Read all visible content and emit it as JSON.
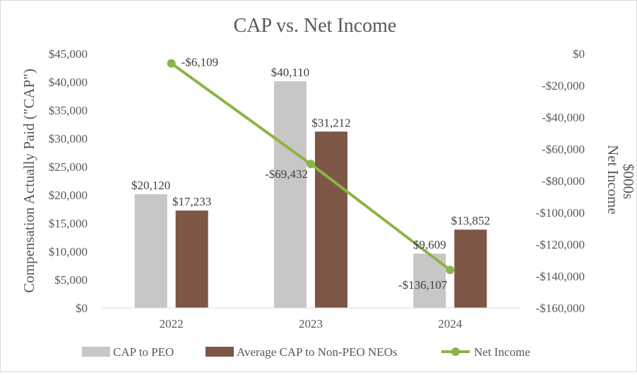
{
  "chart_data": {
    "type": "bar+line",
    "title": "CAP vs. Net Income",
    "categories": [
      "2022",
      "2023",
      "2024"
    ],
    "series": [
      {
        "name": "CAP to PEO",
        "kind": "bar",
        "axis": "left",
        "color": "#c8c7c5",
        "values": [
          20120,
          40110,
          9609
        ],
        "labels": [
          "$20,120",
          "$40,110",
          "$9,609"
        ]
      },
      {
        "name": "Average CAP to Non-PEO NEOs",
        "kind": "bar",
        "axis": "left",
        "color": "#7d5646",
        "values": [
          17233,
          31212,
          13852
        ],
        "labels": [
          "$17,233",
          "$31,212",
          "$13,852"
        ]
      },
      {
        "name": "Net Income",
        "kind": "line",
        "axis": "right",
        "color": "#8cb347",
        "values": [
          -6109,
          -69432,
          -136107
        ],
        "labels": [
          "-$6,109",
          "-$69,432",
          "-$136,107"
        ]
      }
    ],
    "ylabel": "Compensation Actually Paid (\"CAP\")",
    "y2label_line1": "Net Income",
    "y2label_line2": "$000s",
    "ylim": [
      0,
      45000
    ],
    "y2lim": [
      -160000,
      0
    ],
    "yticks": [
      0,
      5000,
      10000,
      15000,
      20000,
      25000,
      30000,
      35000,
      40000,
      45000
    ],
    "ytick_labels": [
      "$0",
      "$5,000",
      "$10,000",
      "$15,000",
      "$20,000",
      "$25,000",
      "$30,000",
      "$35,000",
      "$40,000",
      "$45,000"
    ],
    "y2ticks": [
      0,
      -20000,
      -40000,
      -60000,
      -80000,
      -100000,
      -120000,
      -140000,
      -160000
    ],
    "y2tick_labels": [
      "$0",
      "-$20,000",
      "-$40,000",
      "-$60,000",
      "-$80,000",
      "-$100,000",
      "-$120,000",
      "-$140,000",
      "-$160,000"
    ],
    "grid": false,
    "legend_position": "bottom"
  }
}
